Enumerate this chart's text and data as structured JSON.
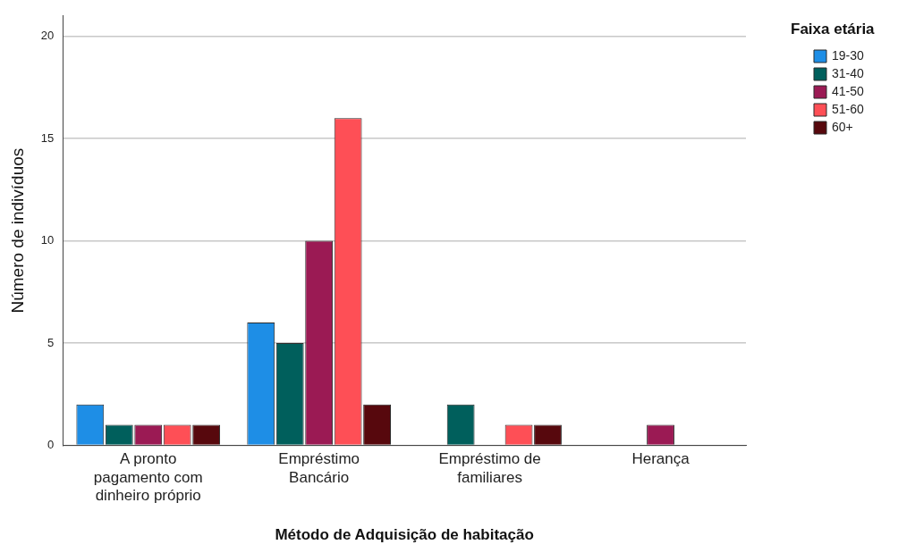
{
  "chart_data": {
    "type": "bar",
    "xlabel": "Método de Adquisição de habitação",
    "ylabel": "Número de indivíduos",
    "legend_title": "Faixa etária",
    "legend": "top right",
    "grid": "y",
    "categories": [
      "A pronto pagamento com dinheiro próprio",
      "Empréstimo Bancário",
      "Empréstimo de familiares",
      "Herança"
    ],
    "ylim": [
      0,
      21
    ],
    "yticks": [
      0,
      5,
      10,
      15,
      20
    ],
    "series": [
      {
        "name": "19-30",
        "color": "#1e8ee6",
        "values": [
          2,
          6,
          null,
          null
        ]
      },
      {
        "name": "31-40",
        "color": "#005f5c",
        "values": [
          1,
          5,
          2,
          null
        ]
      },
      {
        "name": "41-50",
        "color": "#9b1a54",
        "values": [
          1,
          10,
          null,
          1
        ]
      },
      {
        "name": "51-60",
        "color": "#fe4f56",
        "values": [
          1,
          16,
          1,
          null
        ]
      },
      {
        "name": "60+",
        "color": "#57080d",
        "values": [
          1,
          2,
          1,
          null
        ]
      }
    ]
  }
}
